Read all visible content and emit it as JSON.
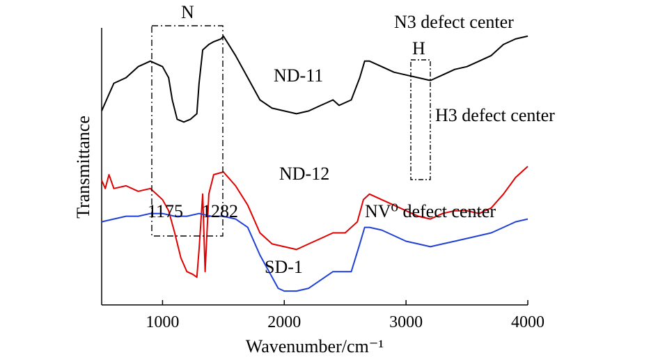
{
  "chart_data": {
    "type": "line",
    "xlabel": "Wavenumber/cm⁻¹",
    "ylabel": "Transmittance",
    "xlim": [
      500,
      4000
    ],
    "x_ticks": [
      1000,
      2000,
      3000,
      4000
    ],
    "y_ticks_shown": false,
    "grid": false,
    "series": [
      {
        "name": "ND-11",
        "color": "#000000",
        "points": [
          [
            500,
            0.7
          ],
          [
            550,
            0.75
          ],
          [
            600,
            0.8
          ],
          [
            700,
            0.82
          ],
          [
            800,
            0.86
          ],
          [
            900,
            0.88
          ],
          [
            1000,
            0.86
          ],
          [
            1050,
            0.82
          ],
          [
            1080,
            0.74
          ],
          [
            1120,
            0.67
          ],
          [
            1175,
            0.66
          ],
          [
            1230,
            0.67
          ],
          [
            1282,
            0.69
          ],
          [
            1300,
            0.8
          ],
          [
            1330,
            0.92
          ],
          [
            1380,
            0.94
          ],
          [
            1420,
            0.95
          ],
          [
            1480,
            0.96
          ],
          [
            1500,
            0.97
          ],
          [
            1600,
            0.9
          ],
          [
            1700,
            0.82
          ],
          [
            1800,
            0.74
          ],
          [
            1900,
            0.71
          ],
          [
            2000,
            0.7
          ],
          [
            2100,
            0.69
          ],
          [
            2200,
            0.7
          ],
          [
            2300,
            0.72
          ],
          [
            2350,
            0.73
          ],
          [
            2400,
            0.74
          ],
          [
            2450,
            0.72
          ],
          [
            2550,
            0.74
          ],
          [
            2620,
            0.82
          ],
          [
            2660,
            0.88
          ],
          [
            2700,
            0.88
          ],
          [
            2800,
            0.86
          ],
          [
            2900,
            0.84
          ],
          [
            3000,
            0.83
          ],
          [
            3100,
            0.82
          ],
          [
            3200,
            0.81
          ],
          [
            3300,
            0.83
          ],
          [
            3400,
            0.85
          ],
          [
            3500,
            0.86
          ],
          [
            3600,
            0.88
          ],
          [
            3700,
            0.9
          ],
          [
            3800,
            0.94
          ],
          [
            3900,
            0.96
          ],
          [
            4000,
            0.97
          ]
        ]
      },
      {
        "name": "ND-12",
        "color": "#e00000",
        "points": [
          [
            500,
            0.45
          ],
          [
            530,
            0.42
          ],
          [
            560,
            0.47
          ],
          [
            600,
            0.42
          ],
          [
            700,
            0.43
          ],
          [
            800,
            0.41
          ],
          [
            900,
            0.42
          ],
          [
            950,
            0.4
          ],
          [
            1000,
            0.38
          ],
          [
            1050,
            0.34
          ],
          [
            1100,
            0.26
          ],
          [
            1150,
            0.17
          ],
          [
            1200,
            0.12
          ],
          [
            1250,
            0.11
          ],
          [
            1282,
            0.1
          ],
          [
            1300,
            0.2
          ],
          [
            1330,
            0.4
          ],
          [
            1350,
            0.12
          ],
          [
            1380,
            0.4
          ],
          [
            1420,
            0.47
          ],
          [
            1500,
            0.48
          ],
          [
            1600,
            0.43
          ],
          [
            1700,
            0.36
          ],
          [
            1800,
            0.26
          ],
          [
            1900,
            0.22
          ],
          [
            2000,
            0.21
          ],
          [
            2100,
            0.2
          ],
          [
            2200,
            0.22
          ],
          [
            2300,
            0.24
          ],
          [
            2400,
            0.26
          ],
          [
            2500,
            0.26
          ],
          [
            2600,
            0.3
          ],
          [
            2650,
            0.38
          ],
          [
            2700,
            0.4
          ],
          [
            2800,
            0.38
          ],
          [
            2900,
            0.36
          ],
          [
            3000,
            0.34
          ],
          [
            3100,
            0.32
          ],
          [
            3200,
            0.31
          ],
          [
            3300,
            0.33
          ],
          [
            3400,
            0.34
          ],
          [
            3500,
            0.34
          ],
          [
            3600,
            0.33
          ],
          [
            3700,
            0.35
          ],
          [
            3800,
            0.4
          ],
          [
            3900,
            0.46
          ],
          [
            4000,
            0.5
          ]
        ]
      },
      {
        "name": "SD-1",
        "color": "#1f3fd6",
        "points": [
          [
            500,
            0.3
          ],
          [
            600,
            0.31
          ],
          [
            700,
            0.32
          ],
          [
            800,
            0.32
          ],
          [
            900,
            0.33
          ],
          [
            1000,
            0.33
          ],
          [
            1100,
            0.32
          ],
          [
            1200,
            0.32
          ],
          [
            1300,
            0.33
          ],
          [
            1400,
            0.32
          ],
          [
            1500,
            0.32
          ],
          [
            1600,
            0.31
          ],
          [
            1700,
            0.28
          ],
          [
            1800,
            0.18
          ],
          [
            1900,
            0.1
          ],
          [
            1950,
            0.06
          ],
          [
            2000,
            0.05
          ],
          [
            2100,
            0.05
          ],
          [
            2200,
            0.06
          ],
          [
            2300,
            0.09
          ],
          [
            2400,
            0.12
          ],
          [
            2450,
            0.12
          ],
          [
            2550,
            0.12
          ],
          [
            2620,
            0.22
          ],
          [
            2660,
            0.28
          ],
          [
            2700,
            0.28
          ],
          [
            2800,
            0.27
          ],
          [
            2900,
            0.25
          ],
          [
            3000,
            0.23
          ],
          [
            3100,
            0.22
          ],
          [
            3200,
            0.21
          ],
          [
            3300,
            0.22
          ],
          [
            3400,
            0.23
          ],
          [
            3500,
            0.24
          ],
          [
            3600,
            0.25
          ],
          [
            3700,
            0.26
          ],
          [
            3800,
            0.28
          ],
          [
            3900,
            0.3
          ],
          [
            4000,
            0.31
          ]
        ]
      }
    ],
    "annotations": {
      "series_labels": {
        "nd11": "ND-11",
        "nd12": "ND-12",
        "sd1": "SD-1"
      },
      "box_n_label": "N",
      "box_h_label": "H",
      "n3": "N3 defect center",
      "h3": "H3 defect center",
      "nv0": "NV⁰ defect center",
      "peak_1175": "1175",
      "peak_1282": "1282"
    }
  }
}
